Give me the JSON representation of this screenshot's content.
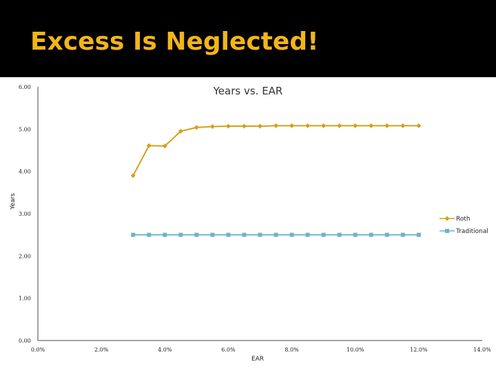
{
  "slide": {
    "title": "Excess Is Neglected!"
  },
  "colors": {
    "header_bg": "#000000",
    "title": "#f2b519",
    "roth": "#d4a017",
    "traditional": "#6fb3c8"
  },
  "chart_data": {
    "type": "line",
    "title": "Years vs. EAR",
    "xlabel": "EAR",
    "ylabel": "Years",
    "xlim": [
      0,
      14
    ],
    "ylim": [
      0,
      6
    ],
    "xticks": [
      "0.0%",
      "2.0%",
      "4.0%",
      "6.0%",
      "8.0%",
      "10.0%",
      "12.0%",
      "14.0%"
    ],
    "yticks": [
      "0.00",
      "1.00",
      "2.00",
      "3.00",
      "4.00",
      "5.00",
      "6.00"
    ],
    "legend": "right",
    "series": [
      {
        "name": "Roth",
        "x": [
          3,
          3.5,
          4,
          4.5,
          5,
          5.5,
          6,
          6.5,
          7,
          7.5,
          8,
          8.5,
          9,
          9.5,
          10,
          10.5,
          11,
          11.5,
          12
        ],
        "y": [
          3.9,
          4.61,
          4.6,
          4.95,
          5.04,
          5.06,
          5.07,
          5.07,
          5.07,
          5.08,
          5.08,
          5.08,
          5.08,
          5.08,
          5.08,
          5.08,
          5.08,
          5.08,
          5.08
        ]
      },
      {
        "name": "Traditional",
        "x": [
          3,
          3.5,
          4,
          4.5,
          5,
          5.5,
          6,
          6.5,
          7,
          7.5,
          8,
          8.5,
          9,
          9.5,
          10,
          10.5,
          11,
          11.5,
          12
        ],
        "y": [
          2.5,
          2.5,
          2.5,
          2.5,
          2.5,
          2.5,
          2.5,
          2.5,
          2.5,
          2.5,
          2.5,
          2.5,
          2.5,
          2.5,
          2.5,
          2.5,
          2.5,
          2.5,
          2.5
        ]
      }
    ]
  }
}
